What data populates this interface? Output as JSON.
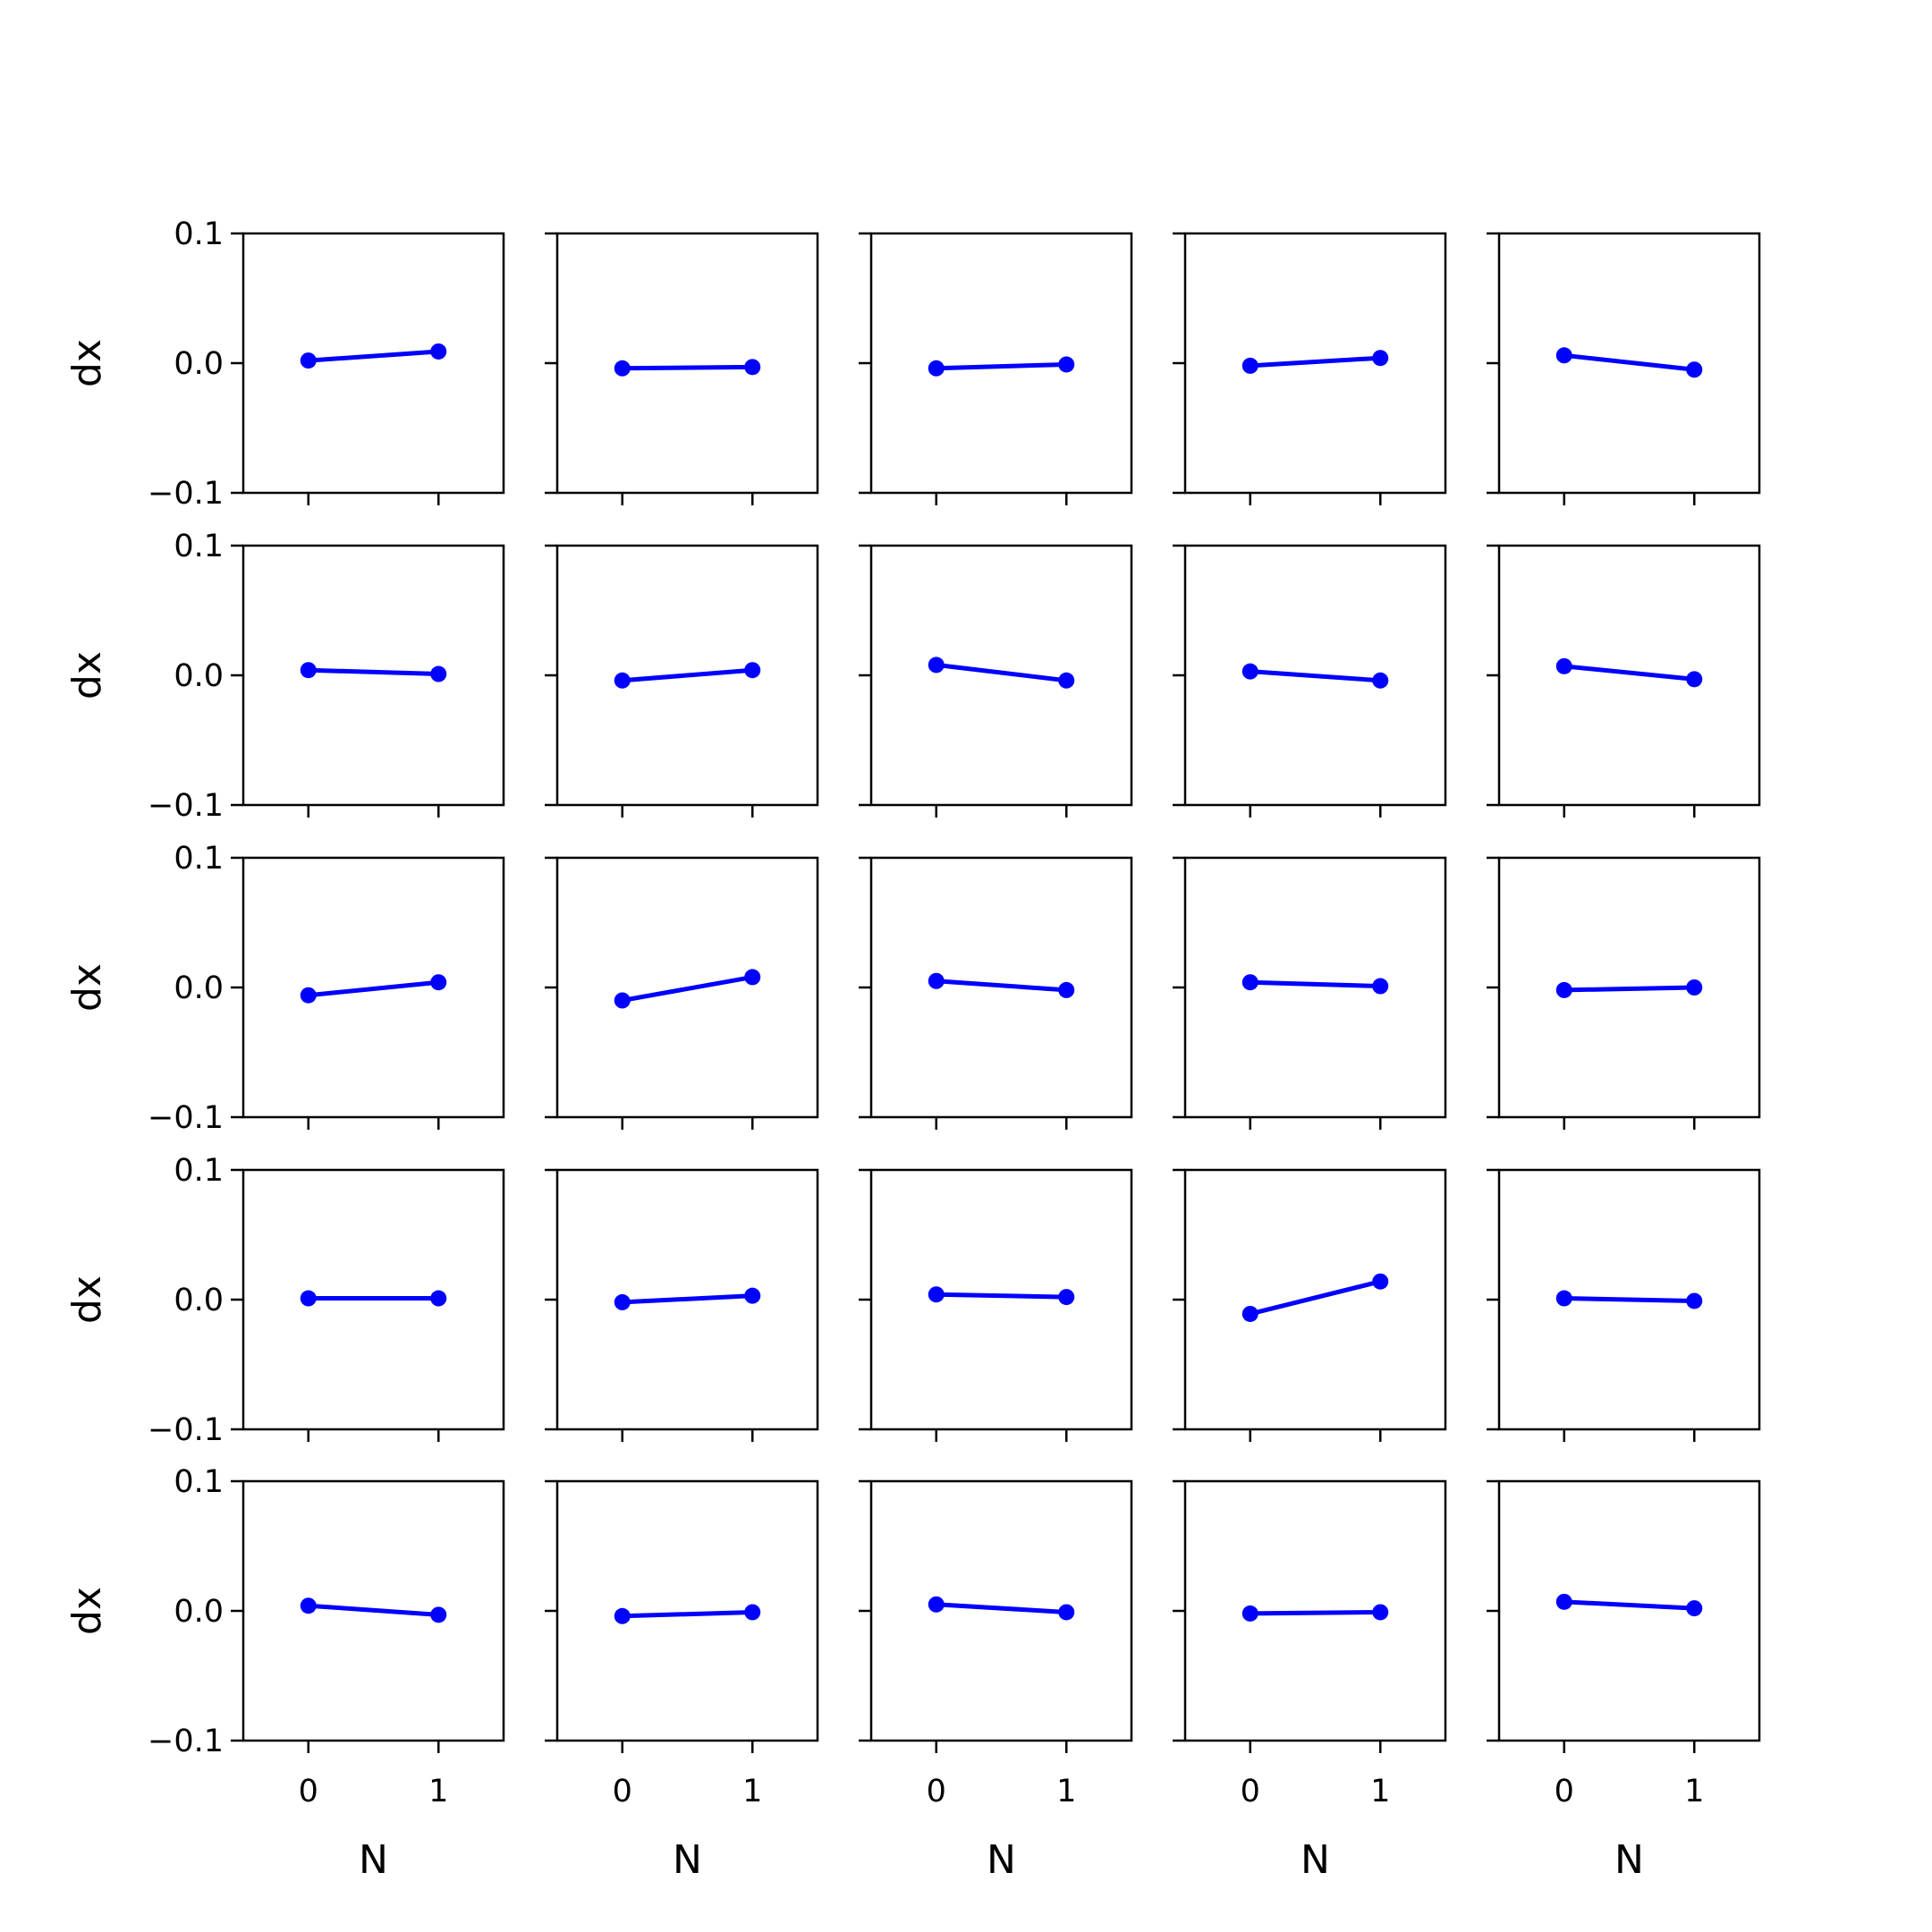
{
  "chart_data": {
    "type": "line",
    "layout": "small-multiples",
    "rows": 5,
    "cols": 5,
    "xlabel": "N",
    "ylabel": "dx",
    "x": [
      0,
      1
    ],
    "xticks": [
      0,
      1
    ],
    "xtick_labels": [
      "0",
      "1"
    ],
    "xlim": [
      -0.5,
      1.5
    ],
    "ylim": [
      -0.1,
      0.1
    ],
    "yticks": [
      -0.1,
      0.0,
      0.1
    ],
    "ytick_labels": [
      "−0.1",
      "0.0",
      "0.1"
    ],
    "grid": false,
    "line_color": "#0000ff",
    "marker": "circle",
    "panels": [
      {
        "row": 0,
        "col": 0,
        "values": [
          0.002,
          0.009
        ]
      },
      {
        "row": 0,
        "col": 1,
        "values": [
          -0.004,
          -0.003
        ]
      },
      {
        "row": 0,
        "col": 2,
        "values": [
          -0.004,
          -0.001
        ]
      },
      {
        "row": 0,
        "col": 3,
        "values": [
          -0.002,
          0.004
        ]
      },
      {
        "row": 0,
        "col": 4,
        "values": [
          0.006,
          -0.005
        ]
      },
      {
        "row": 1,
        "col": 0,
        "values": [
          0.004,
          0.001
        ]
      },
      {
        "row": 1,
        "col": 1,
        "values": [
          -0.004,
          0.004
        ]
      },
      {
        "row": 1,
        "col": 2,
        "values": [
          0.008,
          -0.004
        ]
      },
      {
        "row": 1,
        "col": 3,
        "values": [
          0.003,
          -0.004
        ]
      },
      {
        "row": 1,
        "col": 4,
        "values": [
          0.007,
          -0.003
        ]
      },
      {
        "row": 2,
        "col": 0,
        "values": [
          -0.006,
          0.004
        ]
      },
      {
        "row": 2,
        "col": 1,
        "values": [
          -0.01,
          0.008
        ]
      },
      {
        "row": 2,
        "col": 2,
        "values": [
          0.005,
          -0.002
        ]
      },
      {
        "row": 2,
        "col": 3,
        "values": [
          0.004,
          0.001
        ]
      },
      {
        "row": 2,
        "col": 4,
        "values": [
          -0.002,
          0.0
        ]
      },
      {
        "row": 3,
        "col": 0,
        "values": [
          0.001,
          0.001
        ]
      },
      {
        "row": 3,
        "col": 1,
        "values": [
          -0.002,
          0.003
        ]
      },
      {
        "row": 3,
        "col": 2,
        "values": [
          0.004,
          0.002
        ]
      },
      {
        "row": 3,
        "col": 3,
        "values": [
          -0.011,
          0.014
        ]
      },
      {
        "row": 3,
        "col": 4,
        "values": [
          0.001,
          -0.001
        ]
      },
      {
        "row": 4,
        "col": 0,
        "values": [
          0.004,
          -0.003
        ]
      },
      {
        "row": 4,
        "col": 1,
        "values": [
          -0.004,
          -0.001
        ]
      },
      {
        "row": 4,
        "col": 2,
        "values": [
          0.005,
          -0.001
        ]
      },
      {
        "row": 4,
        "col": 3,
        "values": [
          -0.002,
          -0.001
        ]
      },
      {
        "row": 4,
        "col": 4,
        "values": [
          0.007,
          0.002
        ]
      }
    ]
  }
}
